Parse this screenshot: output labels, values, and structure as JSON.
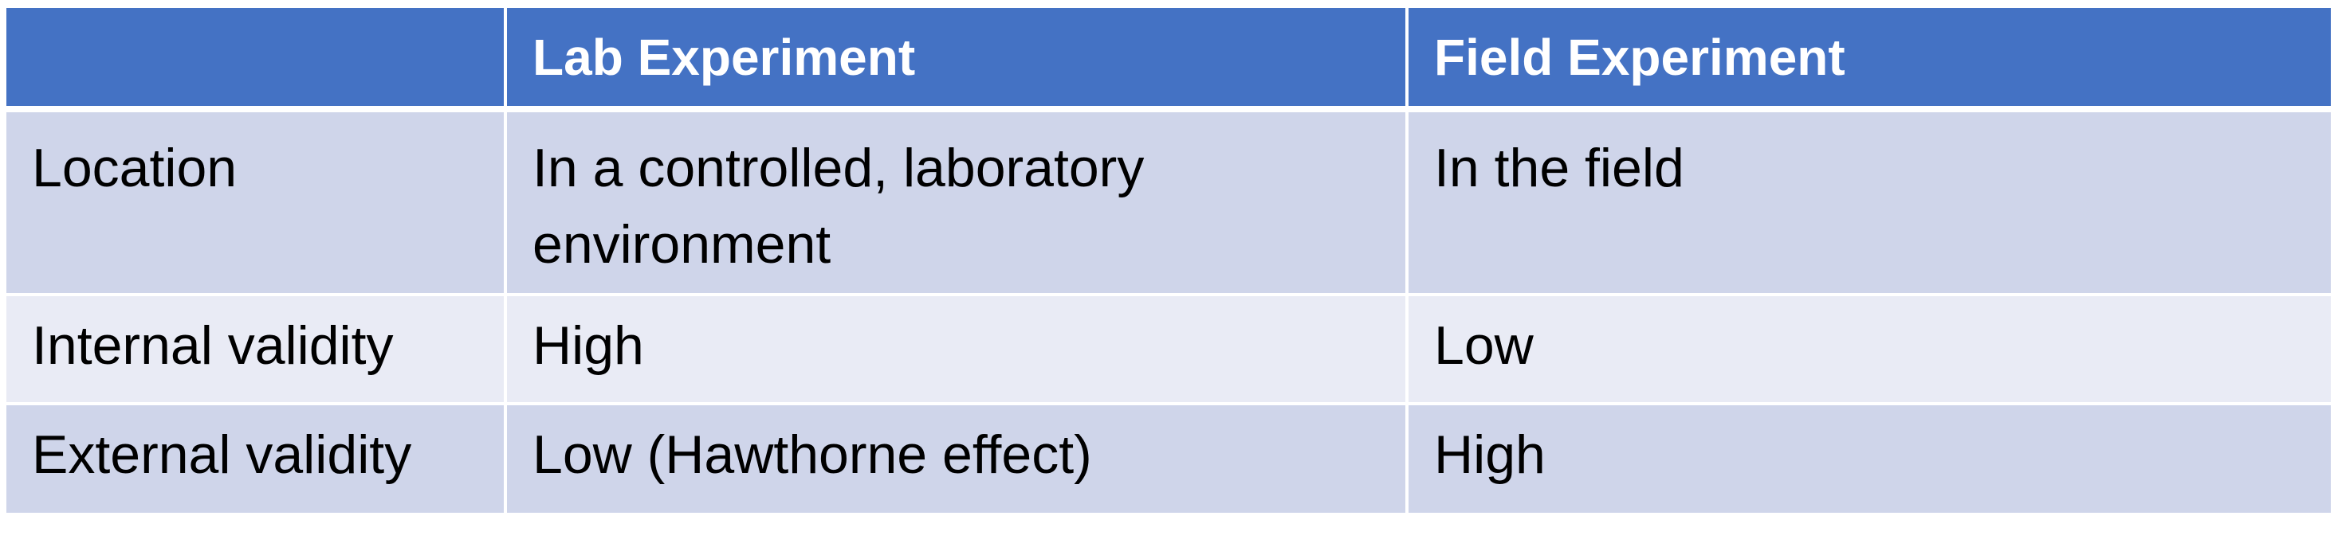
{
  "table": {
    "headers": [
      "",
      "Lab Experiment",
      "Field Experiment"
    ],
    "rows": [
      [
        "Location",
        "In a controlled, laboratory environment",
        "In the field"
      ],
      [
        "Internal validity",
        "High",
        "Low"
      ],
      [
        "External validity",
        "Low (Hawthorne effect)",
        "High"
      ]
    ]
  },
  "colors": {
    "header_bg": "#4472c4",
    "row_dark_bg": "#cfd5ea",
    "row_light_bg": "#e9ebf5",
    "header_text": "#ffffff",
    "body_text": "#000000"
  }
}
